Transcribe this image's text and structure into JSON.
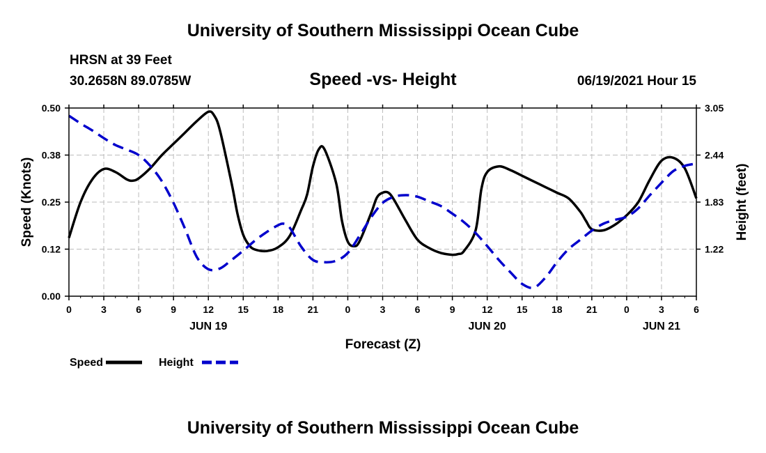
{
  "header": {
    "top_title": "University of Southern Mississippi Ocean Cube",
    "station": "HRSN at 39 Feet",
    "coords": "30.2658N  89.0785W",
    "subtitle": "Speed -vs- Height",
    "datetime": "06/19/2021 Hour 15",
    "bottom_title": "University of Southern Mississippi Ocean Cube"
  },
  "chart_data": {
    "type": "line",
    "title": "Speed -vs- Height",
    "xlabel": "Forecast (Z)",
    "ylabel": "Speed (Knots)",
    "y2label": "Height (feet)",
    "x_unit": "hours from Jun 19 00Z",
    "xlim": [
      0,
      54
    ],
    "ylim": [
      0,
      0.5
    ],
    "y2lim": [
      0.61,
      3.05
    ],
    "grid": true,
    "x_tick_values": [
      0,
      3,
      6,
      9,
      12,
      15,
      18,
      21,
      24,
      27,
      30,
      33,
      36,
      39,
      42,
      45,
      48,
      51,
      54
    ],
    "x_tick_labels": [
      "0",
      "3",
      "6",
      "9",
      "12",
      "15",
      "18",
      "21",
      "0",
      "3",
      "6",
      "9",
      "12",
      "15",
      "18",
      "21",
      "0",
      "3",
      "6"
    ],
    "date_labels": [
      {
        "x": 12,
        "label": "JUN 19"
      },
      {
        "x": 36,
        "label": "JUN 20"
      },
      {
        "x": 51,
        "label": "JUN 21"
      }
    ],
    "y_ticks": [
      0.0,
      0.125,
      0.25,
      0.375,
      0.5
    ],
    "y_tick_labels": [
      "0.00",
      "0.12",
      "0.25",
      "0.38",
      "0.50"
    ],
    "y2_ticks": [
      1.22,
      1.83,
      2.44,
      3.05
    ],
    "y2_tick_labels": [
      "1.22",
      "1.83",
      "2.44",
      "3.05"
    ],
    "series": [
      {
        "name": "Speed",
        "axis": "left",
        "color": "#000000",
        "style": "solid",
        "x": [
          0,
          1,
          2,
          3,
          4,
          5,
          5.5,
          6,
          7,
          8,
          9,
          10,
          11,
          12,
          12.5,
          13,
          14,
          14.5,
          15,
          15.5,
          16,
          17,
          18,
          19,
          20,
          20.5,
          21,
          21.5,
          22,
          23,
          23.5,
          24,
          24.5,
          25,
          26,
          26.5,
          27,
          27.5,
          28,
          29,
          30,
          31,
          32,
          33,
          33.5,
          34,
          35,
          35.5,
          36,
          37,
          38,
          39,
          40,
          41,
          42,
          43,
          44,
          44.5,
          45,
          46,
          47,
          48,
          49,
          50,
          51,
          52,
          53,
          54
        ],
        "values": [
          0.155,
          0.25,
          0.31,
          0.338,
          0.33,
          0.31,
          0.307,
          0.313,
          0.34,
          0.375,
          0.405,
          0.435,
          0.465,
          0.49,
          0.48,
          0.44,
          0.3,
          0.22,
          0.163,
          0.136,
          0.124,
          0.12,
          0.13,
          0.16,
          0.23,
          0.27,
          0.345,
          0.39,
          0.39,
          0.3,
          0.2,
          0.145,
          0.133,
          0.145,
          0.22,
          0.262,
          0.275,
          0.275,
          0.255,
          0.2,
          0.15,
          0.128,
          0.115,
          0.11,
          0.112,
          0.12,
          0.175,
          0.285,
          0.33,
          0.345,
          0.335,
          0.32,
          0.305,
          0.29,
          0.275,
          0.26,
          0.225,
          0.2,
          0.178,
          0.175,
          0.19,
          0.215,
          0.25,
          0.31,
          0.36,
          0.368,
          0.34,
          0.26
        ]
      },
      {
        "name": "Height",
        "axis": "right",
        "color": "#0000cc",
        "style": "dashed",
        "x": [
          0,
          1,
          2,
          3,
          4,
          5,
          6,
          7,
          8,
          9,
          10,
          11,
          12,
          13,
          14,
          15,
          16,
          17,
          18,
          18.5,
          19,
          20,
          21,
          22,
          23,
          24,
          25,
          26,
          27,
          28,
          29,
          30,
          31,
          32,
          33,
          34,
          35,
          36,
          37,
          38,
          39,
          40,
          41,
          42,
          43,
          44,
          45,
          46,
          47,
          48,
          49,
          50,
          51,
          52,
          53,
          54
        ],
        "values": [
          2.95,
          2.85,
          2.76,
          2.66,
          2.57,
          2.51,
          2.44,
          2.3,
          2.1,
          1.82,
          1.48,
          1.12,
          0.96,
          0.97,
          1.08,
          1.2,
          1.33,
          1.44,
          1.53,
          1.55,
          1.5,
          1.25,
          1.08,
          1.05,
          1.07,
          1.17,
          1.39,
          1.63,
          1.82,
          1.9,
          1.92,
          1.9,
          1.84,
          1.78,
          1.68,
          1.57,
          1.43,
          1.26,
          1.08,
          0.92,
          0.77,
          0.72,
          0.85,
          1.05,
          1.22,
          1.34,
          1.46,
          1.55,
          1.6,
          1.64,
          1.75,
          1.92,
          2.08,
          2.23,
          2.3,
          2.33
        ]
      }
    ],
    "legend": [
      {
        "label": "Speed",
        "color": "#000000",
        "style": "solid"
      },
      {
        "label": "Height",
        "color": "#0000cc",
        "style": "dashed"
      }
    ]
  }
}
